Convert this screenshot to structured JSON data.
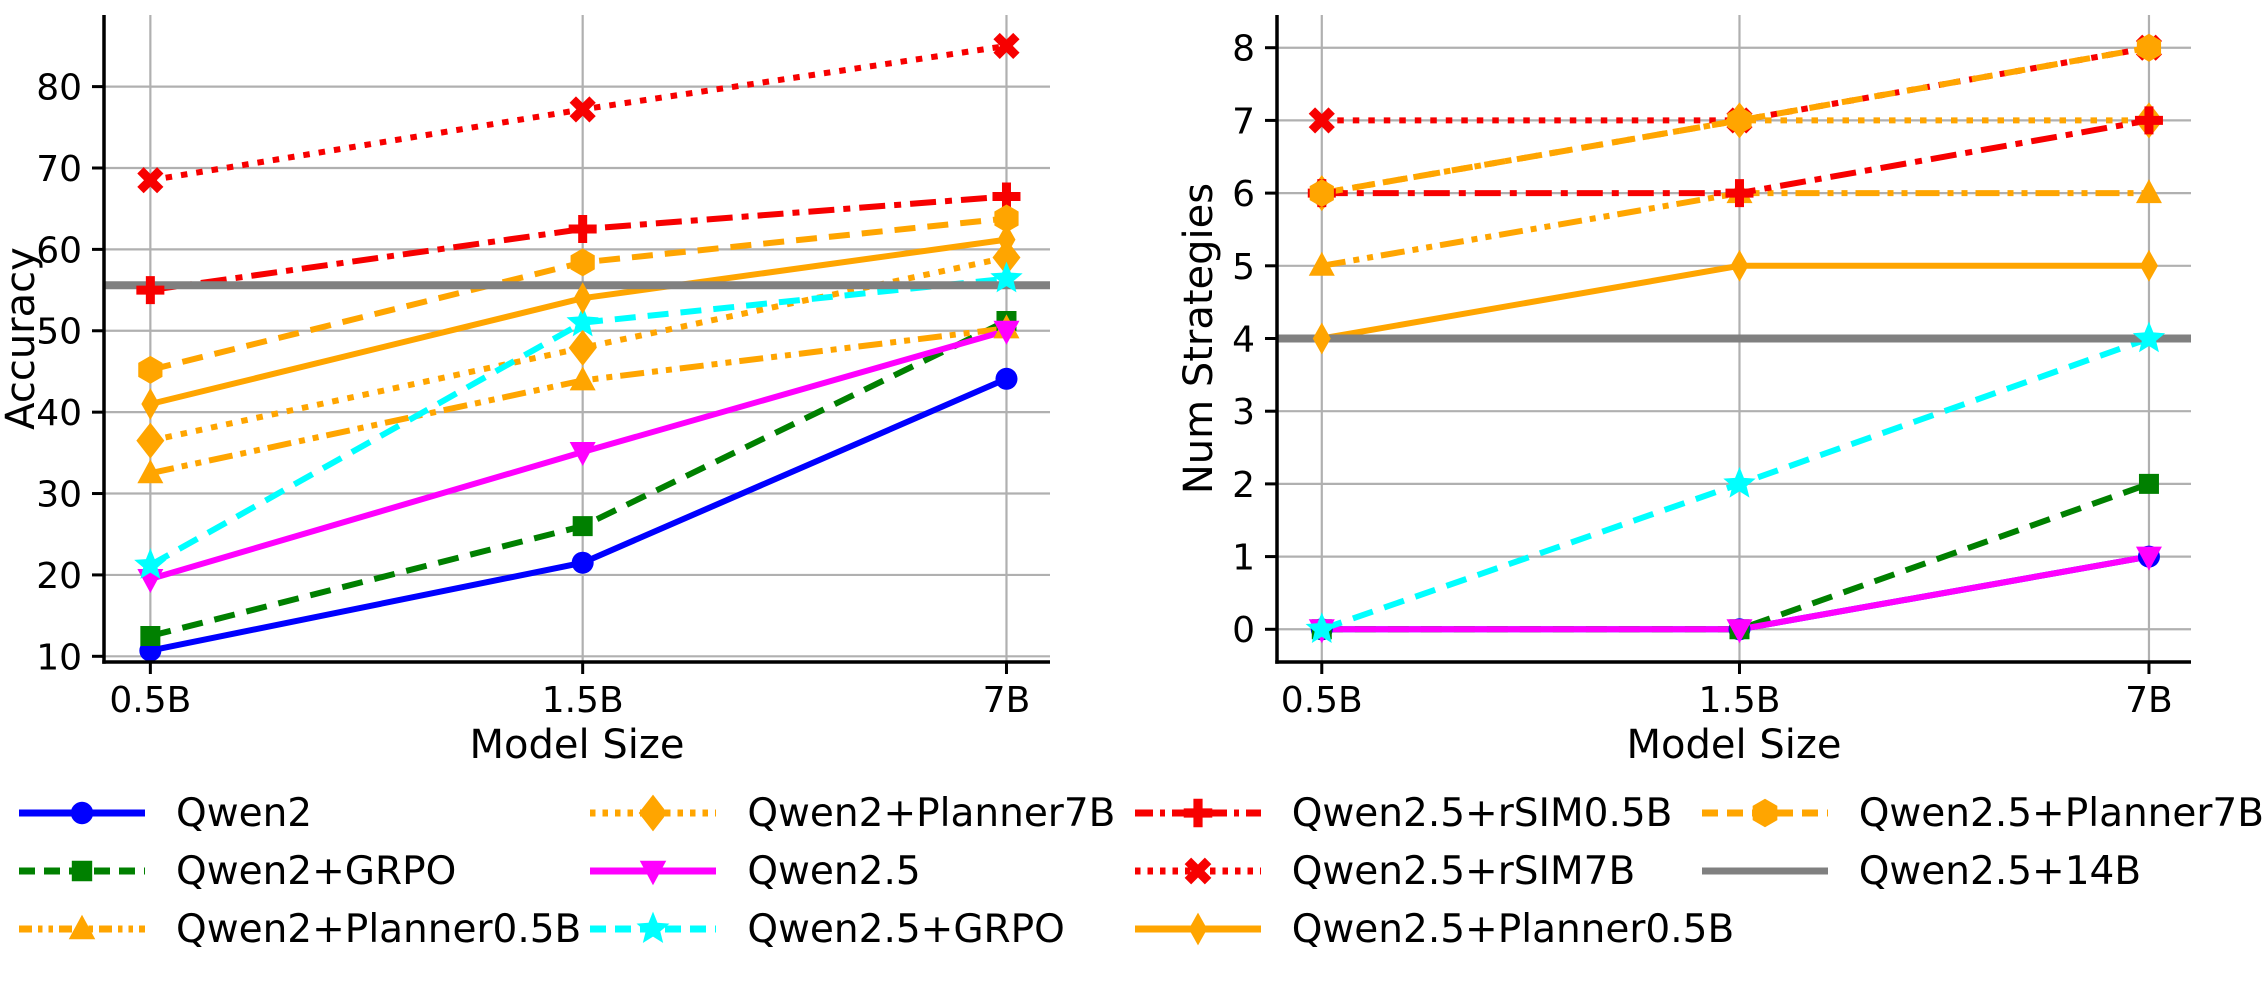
{
  "figure": {
    "background": "#ffffff"
  },
  "colors": {
    "blue": "#0000ff",
    "green": "#008000",
    "orange": "#ffa500",
    "magenta": "#ff00ff",
    "cyan": "#00ffff",
    "red": "#f70000",
    "gray": "#808080",
    "grid": "#b0b0b0",
    "spine": "#000000",
    "text": "#000000"
  },
  "series_styles": {
    "Qwen2": {
      "color": "blue",
      "linestyle": "solid",
      "marker": "circle"
    },
    "Qwen2+GRPO": {
      "color": "green",
      "linestyle": "dashed",
      "marker": "square"
    },
    "Qwen2+Planner0.5B": {
      "color": "orange",
      "linestyle": "dashdotdot",
      "marker": "triangle-up"
    },
    "Qwen2+Planner7B": {
      "color": "orange",
      "linestyle": "dotted",
      "marker": "diamond"
    },
    "Qwen2.5": {
      "color": "magenta",
      "linestyle": "solid",
      "marker": "triangle-down"
    },
    "Qwen2.5+GRPO": {
      "color": "cyan",
      "linestyle": "dashed",
      "marker": "star"
    },
    "Qwen2.5+rSIM0.5B": {
      "color": "red",
      "linestyle": "dashdot",
      "marker": "plus"
    },
    "Qwen2.5+rSIM7B": {
      "color": "red",
      "linestyle": "dotted",
      "marker": "x"
    },
    "Qwen2.5+Planner0.5B": {
      "color": "orange",
      "linestyle": "solid",
      "marker": "thin-diamond"
    },
    "Qwen2.5+Planner7B": {
      "color": "orange",
      "linestyle": "dashed",
      "marker": "hexagon"
    },
    "Qwen2.5+14B": {
      "color": "gray",
      "linestyle": "solid",
      "marker": "none"
    }
  },
  "chart_data": [
    {
      "type": "line",
      "title": "",
      "xlabel": "Model Size",
      "ylabel": "Accuracy",
      "categories": [
        "0.5B",
        "1.5B",
        "7B"
      ],
      "ylim": [
        9.3,
        88.8
      ],
      "yticks": [
        10,
        20,
        30,
        40,
        50,
        60,
        70,
        80
      ],
      "grid": true,
      "legend_position": "below-figure",
      "series": [
        {
          "name": "Qwen2",
          "values": [
            10.7,
            21.5,
            44.1
          ]
        },
        {
          "name": "Qwen2+GRPO",
          "values": [
            12.5,
            26.0,
            51.2
          ]
        },
        {
          "name": "Qwen2+Planner0.5B",
          "values": [
            32.5,
            43.9,
            50.3
          ]
        },
        {
          "name": "Qwen2+Planner7B",
          "values": [
            36.5,
            47.9,
            59.0
          ]
        },
        {
          "name": "Qwen2.5",
          "values": [
            19.5,
            35.1,
            50.0
          ]
        },
        {
          "name": "Qwen2.5+GRPO",
          "values": [
            21.2,
            51.0,
            56.4
          ]
        },
        {
          "name": "Qwen2.5+rSIM0.5B",
          "values": [
            55.0,
            62.5,
            66.5
          ]
        },
        {
          "name": "Qwen2.5+rSIM7B",
          "values": [
            68.5,
            77.2,
            85.0
          ]
        },
        {
          "name": "Qwen2.5+Planner0.5B",
          "values": [
            41.0,
            54.0,
            61.2
          ]
        },
        {
          "name": "Qwen2.5+Planner7B",
          "values": [
            45.2,
            58.4,
            63.8
          ]
        }
      ],
      "baseline": {
        "name": "Qwen2.5+14B",
        "value": 55.6
      }
    },
    {
      "type": "line",
      "title": "",
      "xlabel": "Model Size",
      "ylabel": "Num Strategies",
      "categories": [
        "0.5B",
        "1.5B",
        "7B"
      ],
      "ylim": [
        -0.45,
        8.45
      ],
      "yticks": [
        0,
        1,
        2,
        3,
        4,
        5,
        6,
        7,
        8
      ],
      "grid": true,
      "legend_position": "below-figure",
      "series": [
        {
          "name": "Qwen2",
          "values": [
            0,
            0,
            1
          ]
        },
        {
          "name": "Qwen2+GRPO",
          "values": [
            0,
            0,
            2
          ]
        },
        {
          "name": "Qwen2+Planner0.5B",
          "values": [
            5,
            6,
            6
          ]
        },
        {
          "name": "Qwen2+Planner7B",
          "values": [
            6,
            7,
            7
          ]
        },
        {
          "name": "Qwen2.5",
          "values": [
            0,
            0,
            1
          ]
        },
        {
          "name": "Qwen2.5+GRPO",
          "values": [
            0,
            2,
            4
          ]
        },
        {
          "name": "Qwen2.5+rSIM0.5B",
          "values": [
            6,
            6,
            7
          ]
        },
        {
          "name": "Qwen2.5+rSIM7B",
          "values": [
            7,
            7,
            8
          ]
        },
        {
          "name": "Qwen2.5+Planner0.5B",
          "values": [
            4,
            5,
            5
          ]
        },
        {
          "name": "Qwen2.5+Planner7B",
          "values": [
            6,
            7,
            8
          ]
        }
      ],
      "baseline": {
        "name": "Qwen2.5+14B",
        "value": 4
      }
    }
  ],
  "legend": {
    "columns": [
      [
        "Qwen2",
        "Qwen2+GRPO",
        "Qwen2+Planner0.5B"
      ],
      [
        "Qwen2+Planner7B",
        "Qwen2.5",
        "Qwen2.5+GRPO"
      ],
      [
        "Qwen2.5+rSIM0.5B",
        "Qwen2.5+rSIM7B",
        "Qwen2.5+Planner0.5B"
      ],
      [
        "Qwen2.5+Planner7B",
        "Qwen2.5+14B"
      ]
    ]
  }
}
